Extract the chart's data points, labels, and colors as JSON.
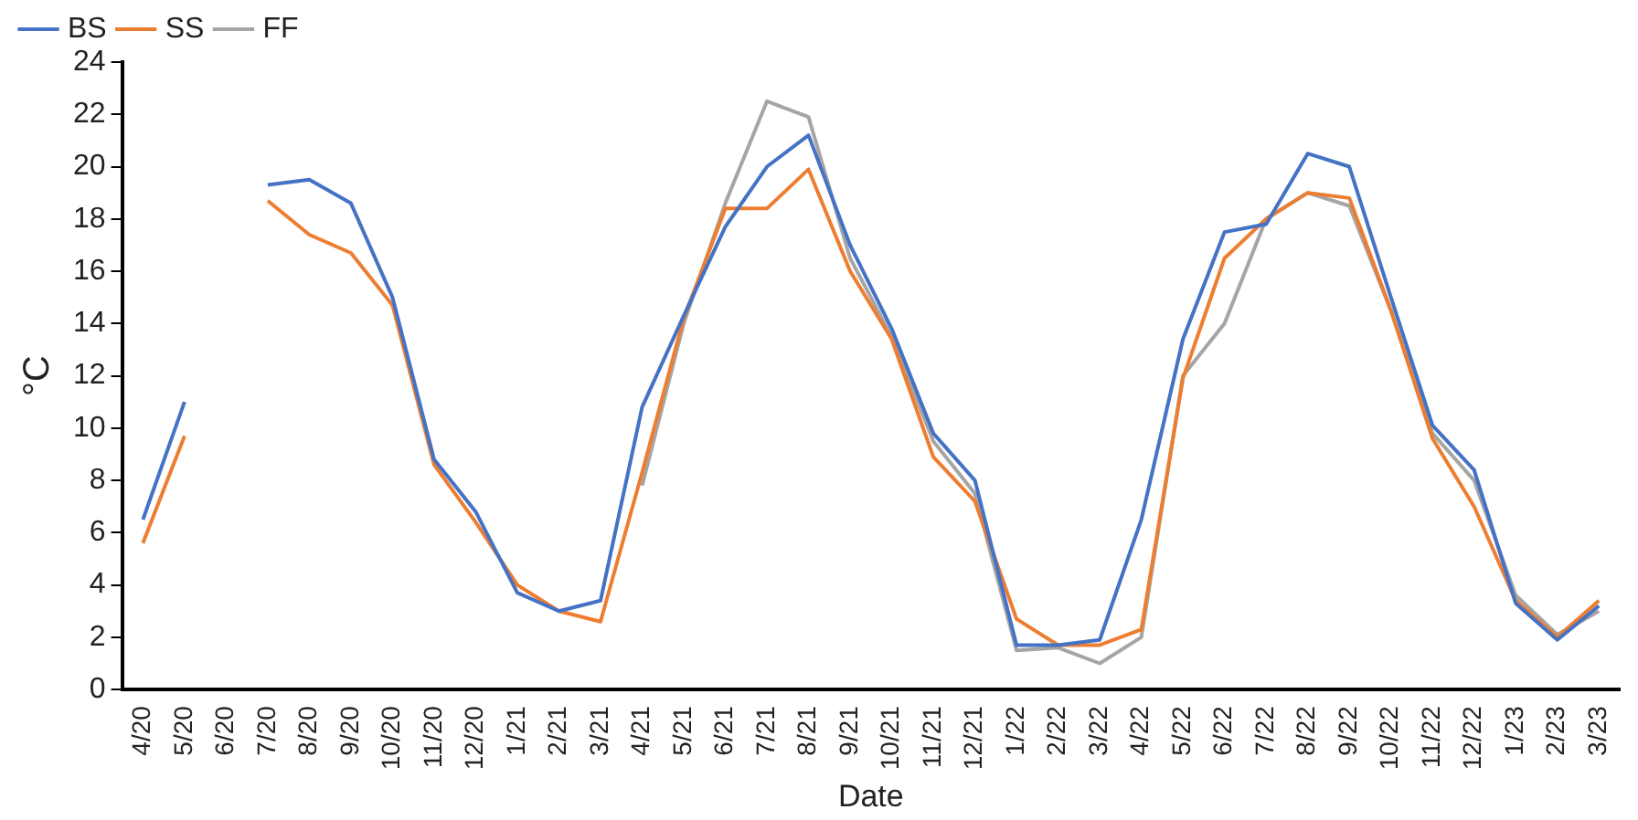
{
  "chart_data": {
    "type": "line",
    "xlabel": "Date",
    "ylabel": "°C",
    "categories": [
      "4/20",
      "5/20",
      "6/20",
      "7/20",
      "8/20",
      "9/20",
      "10/20",
      "11/20",
      "12/20",
      "1/21",
      "2/21",
      "3/21",
      "4/21",
      "5/21",
      "6/21",
      "7/21",
      "8/21",
      "9/21",
      "10/21",
      "11/21",
      "12/21",
      "1/22",
      "2/22",
      "3/22",
      "4/22",
      "5/22",
      "6/22",
      "7/22",
      "8/22",
      "9/22",
      "10/22",
      "11/22",
      "12/22",
      "1/23",
      "2/23",
      "3/23"
    ],
    "series": [
      {
        "name": "BS",
        "color": "#4472c4",
        "values": [
          6.5,
          11.0,
          null,
          19.3,
          19.5,
          18.6,
          15.0,
          8.8,
          6.8,
          3.7,
          3.0,
          3.4,
          10.8,
          14.3,
          17.7,
          20.0,
          21.2,
          17.0,
          13.8,
          9.8,
          8.0,
          1.7,
          1.7,
          1.9,
          6.5,
          13.4,
          17.5,
          17.8,
          20.5,
          20.0,
          15.0,
          10.1,
          8.4,
          3.3,
          1.9,
          3.2
        ]
      },
      {
        "name": "SS",
        "color": "#ed7d31",
        "values": [
          5.6,
          9.7,
          null,
          18.7,
          17.4,
          16.7,
          14.7,
          8.6,
          6.4,
          4.0,
          3.0,
          2.6,
          8.3,
          14.2,
          18.4,
          18.4,
          19.9,
          16.0,
          13.4,
          8.9,
          7.2,
          2.7,
          1.7,
          1.7,
          2.3,
          11.9,
          16.5,
          18.0,
          19.0,
          18.8,
          14.5,
          9.6,
          7.0,
          3.4,
          2.0,
          3.4
        ]
      },
      {
        "name": "FF",
        "color": "#a5a5a5",
        "values": [
          null,
          null,
          null,
          null,
          null,
          null,
          null,
          null,
          null,
          null,
          null,
          null,
          7.8,
          14.0,
          18.6,
          22.5,
          21.9,
          16.5,
          13.5,
          9.5,
          7.5,
          1.5,
          1.6,
          1.0,
          2.0,
          12.0,
          14.0,
          18.0,
          19.0,
          18.5,
          14.5,
          9.8,
          8.0,
          3.6,
          2.1,
          3.0
        ]
      }
    ],
    "ylim": [
      0,
      24
    ],
    "yticks": [
      0,
      2,
      4,
      6,
      8,
      10,
      12,
      14,
      16,
      18,
      20,
      22,
      24
    ],
    "grid": false,
    "legend": "top left",
    "marker": "none",
    "line_style": "solid"
  }
}
